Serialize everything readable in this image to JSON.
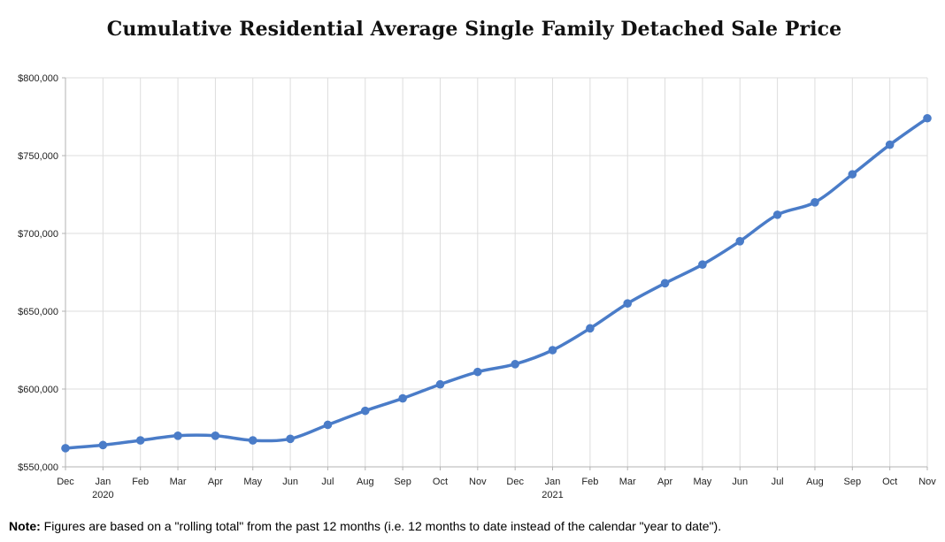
{
  "chart_data": {
    "type": "line",
    "title": "Cumulative Residential Average Single Family Detached Sale Price",
    "xlabel": "",
    "ylabel": "",
    "categories": [
      "Dec",
      "Jan",
      "Feb",
      "Mar",
      "Apr",
      "May",
      "Jun",
      "Jul",
      "Aug",
      "Sep",
      "Oct",
      "Nov",
      "Dec",
      "Jan",
      "Feb",
      "Mar",
      "Apr",
      "May",
      "Jun",
      "Jul",
      "Aug",
      "Sep",
      "Oct",
      "Nov"
    ],
    "year_labels": [
      "",
      "2020",
      "",
      "",
      "",
      "",
      "",
      "",
      "",
      "",
      "",
      "",
      "",
      "2021",
      "",
      "",
      "",
      "",
      "",
      "",
      "",
      "",
      "",
      ""
    ],
    "series": [
      {
        "values": [
          562000,
          564000,
          567000,
          570000,
          570000,
          567000,
          568000,
          577000,
          586000,
          594000,
          603000,
          611000,
          616000,
          625000,
          639000,
          655000,
          668000,
          680000,
          695000,
          712000,
          720000,
          738000,
          757000,
          774000
        ]
      }
    ],
    "ylim": [
      550000,
      800000
    ],
    "yticks": [
      550000,
      600000,
      650000,
      700000,
      750000,
      800000
    ],
    "ytick_labels": [
      "$550,000",
      "$600,000",
      "$650,000",
      "$700,000",
      "$750,000",
      "$800,000"
    ],
    "grid": true,
    "line_color": "#4a7cc8",
    "grid_color": "#dddddd"
  },
  "note": {
    "label": "Note:",
    "text": " Figures are based on a \"rolling total\" from the past 12 months (i.e. 12 months to date instead of the calendar \"year to date\")."
  }
}
